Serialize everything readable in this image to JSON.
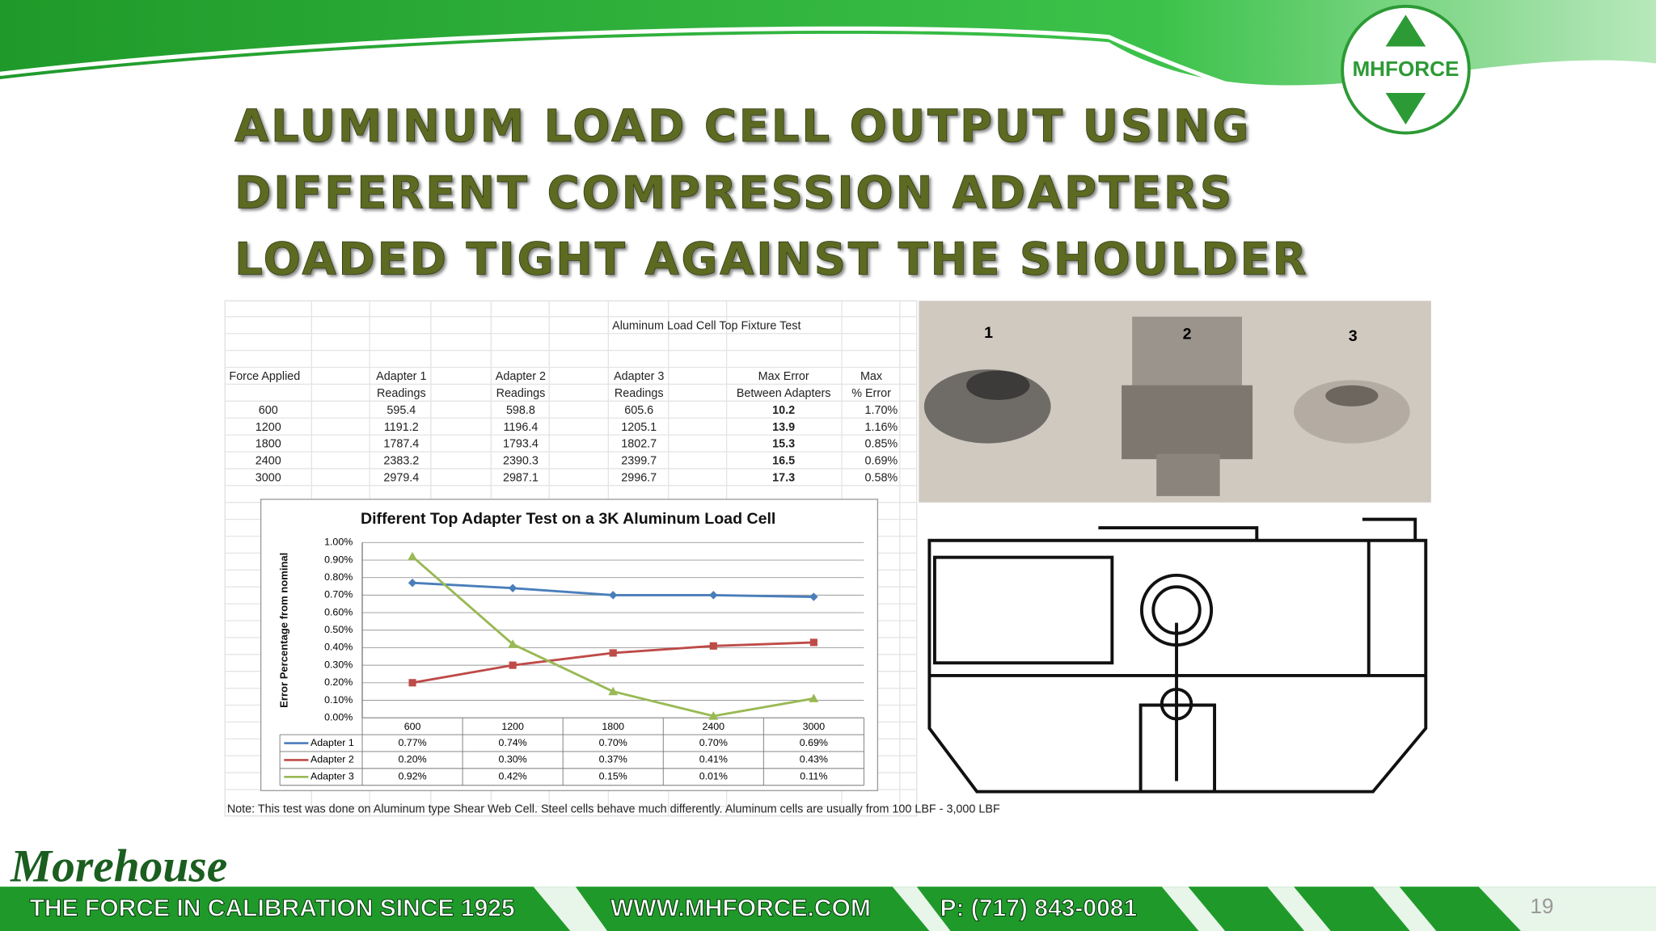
{
  "slide": {
    "title": [
      "ALUMINUM LOAD CELL OUTPUT USING",
      "DIFFERENT COMPRESSION ADAPTERS",
      "LOADED TIGHT AGAINST THE SHOULDER"
    ],
    "logo": "MHFORCE",
    "photo_labels": [
      "1",
      "2",
      "3"
    ],
    "brand": "Morehouse",
    "footer": [
      "THE FORCE IN CALIBRATION SINCE 1925",
      "WWW.MHFORCE.COM",
      "P: (717) 843-0081"
    ],
    "page_number": "19"
  },
  "table": {
    "title": "Aluminum Load Cell Top Fixture Test",
    "header": [
      [
        "Force Applied"
      ],
      [
        "Adapter 1",
        "Readings"
      ],
      [
        "Adapter 2",
        "Readings"
      ],
      [
        "Adapter 3",
        "Readings"
      ],
      [
        "Max Error",
        "Between Adapters"
      ],
      [
        "Max",
        "% Error"
      ]
    ],
    "rows": [
      [
        "600",
        "595.4",
        "598.8",
        "605.6",
        "10.2",
        "1.70%"
      ],
      [
        "1200",
        "1191.2",
        "1196.4",
        "1205.1",
        "13.9",
        "1.16%"
      ],
      [
        "1800",
        "1787.4",
        "1793.4",
        "1802.7",
        "15.3",
        "0.85%"
      ],
      [
        "2400",
        "2383.2",
        "2390.3",
        "2399.7",
        "16.5",
        "0.69%"
      ],
      [
        "3000",
        "2979.4",
        "2987.1",
        "2996.7",
        "17.3",
        "0.58%"
      ]
    ],
    "note": "Note:  This test was done on Aluminum type Shear Web Cell.   Steel cells behave much differently.  Aluminum cells are usually from 100 LBF - 3,000 LBF"
  },
  "chart_data": {
    "type": "line",
    "title": "Different Top Adapter Test on a 3K Aluminum  Load Cell",
    "y_label": "Error Percentage from nominal",
    "categories": [
      "600",
      "1200",
      "1800",
      "2400",
      "3000"
    ],
    "series": [
      {
        "name": "Adapter 1",
        "color": "#4a7ebb",
        "values": [
          0.77,
          0.74,
          0.7,
          0.7,
          0.69
        ],
        "value_labels": [
          "0.77%",
          "0.74%",
          "0.70%",
          "0.70%",
          "0.69%"
        ]
      },
      {
        "name": "Adapter 2",
        "color": "#be4b48",
        "values": [
          0.2,
          0.3,
          0.37,
          0.41,
          0.43
        ],
        "value_labels": [
          "0.20%",
          "0.30%",
          "0.37%",
          "0.41%",
          "0.43%"
        ]
      },
      {
        "name": "Adapter 3",
        "color": "#98b954",
        "values": [
          0.92,
          0.42,
          0.15,
          0.01,
          0.11
        ],
        "value_labels": [
          "0.92%",
          "0.42%",
          "0.15%",
          "0.01%",
          "0.11%"
        ]
      }
    ],
    "ylim": [
      0,
      1
    ],
    "yticks": [
      {
        "value": 0,
        "label": "0.00%"
      },
      {
        "value": 0.1,
        "label": "0.10%"
      },
      {
        "value": 0.2,
        "label": "0.20%"
      },
      {
        "value": 0.3,
        "label": "0.30%"
      },
      {
        "value": 0.4,
        "label": "0.40%"
      },
      {
        "value": 0.5,
        "label": "0.50%"
      },
      {
        "value": 0.6,
        "label": "0.60%"
      },
      {
        "value": 0.7,
        "label": "0.70%"
      },
      {
        "value": 0.8,
        "label": "0.80%"
      },
      {
        "value": 0.9,
        "label": "0.90%"
      },
      {
        "value": 1,
        "label": "1.00%"
      }
    ],
    "grid": true
  }
}
